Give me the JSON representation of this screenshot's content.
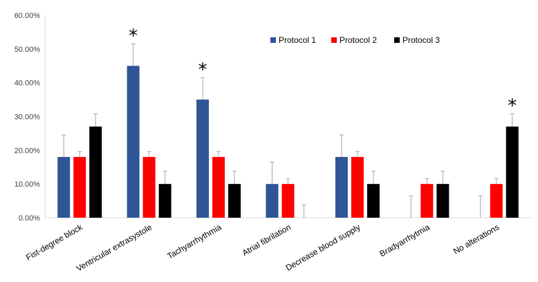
{
  "chart_data": {
    "type": "bar",
    "title": "",
    "xlabel": "",
    "ylabel": "",
    "ylim": [
      0,
      0.6
    ],
    "y_ticks": [
      "0.00%",
      "10.00%",
      "20.00%",
      "30.00%",
      "40.00%",
      "50.00%",
      "60.00%"
    ],
    "grid": false,
    "legend_position": "top-right",
    "categories": [
      "Fist-degree block",
      "Ventricular extrasystole",
      "Tachyarrhythmia",
      "Atrial fibrilation",
      "Decrease blood supply",
      "Bradyarrhytmia",
      "No alterations"
    ],
    "series": [
      {
        "name": "Protocol 1",
        "color": "#2F5597",
        "values": [
          0.18,
          0.45,
          0.35,
          0.1,
          0.18,
          0.0,
          0.0
        ],
        "errors": [
          0.065,
          0.065,
          0.065,
          0.065,
          0.065,
          0.065,
          0.065
        ]
      },
      {
        "name": "Protocol 2",
        "color": "#FF0000",
        "values": [
          0.18,
          0.18,
          0.18,
          0.1,
          0.18,
          0.1,
          0.1
        ],
        "errors": [
          0.016,
          0.016,
          0.016,
          0.016,
          0.016,
          0.016,
          0.016
        ]
      },
      {
        "name": "Protocol 3",
        "color": "#000000",
        "values": [
          0.27,
          0.1,
          0.1,
          0.0,
          0.1,
          0.1,
          0.27
        ],
        "errors": [
          0.038,
          0.038,
          0.038,
          0.038,
          0.038,
          0.038,
          0.038
        ]
      }
    ],
    "annotations": [
      {
        "text": "*",
        "category_index": 1,
        "series_index": 0
      },
      {
        "text": "*",
        "category_index": 2,
        "series_index": 0
      },
      {
        "text": "*",
        "category_index": 6,
        "series_index": 2
      }
    ]
  }
}
